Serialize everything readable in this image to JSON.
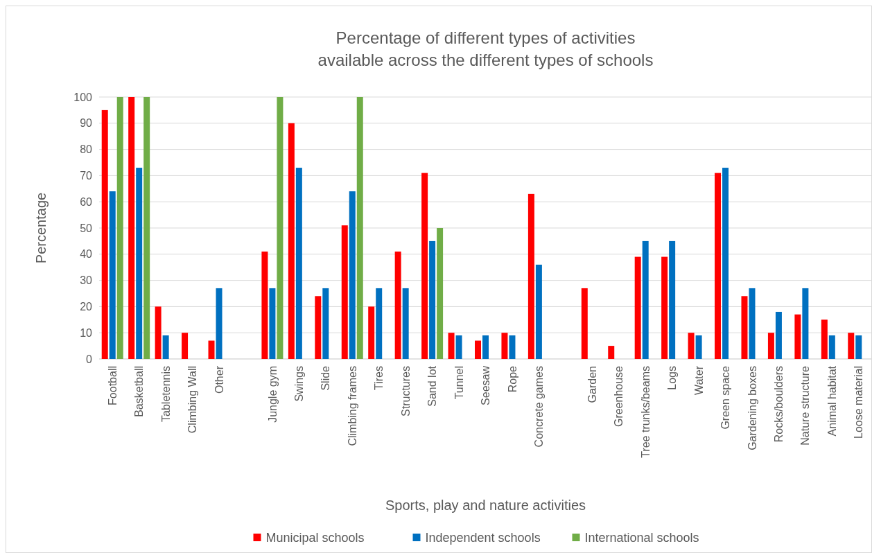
{
  "chart_data": {
    "type": "bar",
    "title": "Percentage of different types of activities\navailable  across the different types of schools",
    "xlabel": "Sports, play and nature activities",
    "ylabel": "Percentage",
    "categories": [
      "Football",
      "Basketball",
      "Tabletennis",
      "Climbing Wall",
      "Other",
      null,
      "Jungle gym",
      "Swings",
      "Slide",
      "Climbing frames",
      "Tires",
      "Structures",
      "Sand lot",
      "Tunnel",
      "Seesaw",
      "Rope",
      "Concrete games",
      null,
      "Garden",
      "Greenhouse",
      "Tree trunks/beams",
      "Logs",
      "Water",
      "Green space",
      "Gardening boxes",
      "Rocks/boulders",
      "Nature structure",
      "Animal habitat",
      "Loose material"
    ],
    "series": [
      {
        "name": "Municipal schools",
        "color": "#ff0000",
        "values": [
          95,
          100,
          20,
          10,
          7,
          null,
          41,
          90,
          24,
          51,
          20,
          41,
          71,
          10,
          7,
          10,
          63,
          null,
          27,
          5,
          39,
          39,
          10,
          71,
          24,
          10,
          17,
          15,
          10
        ]
      },
      {
        "name": "Independent schools",
        "color": "#0070c0",
        "values": [
          64,
          73,
          9,
          null,
          27,
          null,
          27,
          73,
          27,
          64,
          27,
          27,
          45,
          9,
          9,
          9,
          36,
          null,
          null,
          null,
          45,
          45,
          9,
          73,
          27,
          18,
          27,
          9,
          9
        ]
      },
      {
        "name": "International schools",
        "color": "#70ad47",
        "values": [
          100,
          100,
          null,
          null,
          null,
          null,
          100,
          null,
          null,
          100,
          null,
          null,
          50,
          null,
          null,
          null,
          null,
          null,
          null,
          null,
          null,
          null,
          null,
          null,
          null,
          null,
          null,
          null,
          null
        ]
      }
    ],
    "ylim": [
      0,
      100
    ],
    "yticks": [
      0,
      10,
      20,
      30,
      40,
      50,
      60,
      70,
      80,
      90,
      100
    ],
    "grid": "y",
    "legend": "bottom"
  }
}
